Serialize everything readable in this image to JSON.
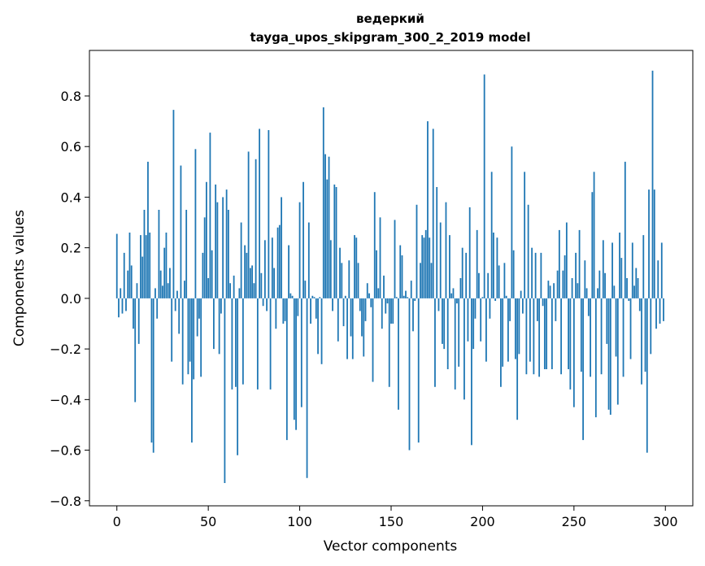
{
  "chart_data": {
    "type": "bar",
    "title_line1": "ведеркий",
    "title_line2": "tayga_upos_skipgram_300_2_2019 model",
    "xlabel": "Vector components",
    "ylabel": "Components values",
    "xlim": [
      -15,
      315
    ],
    "ylim": [
      -0.82,
      0.98
    ],
    "xticks": [
      0,
      50,
      100,
      150,
      200,
      250,
      300
    ],
    "xtick_labels": [
      "0",
      "50",
      "100",
      "150",
      "200",
      "250",
      "300"
    ],
    "yticks": [
      -0.8,
      -0.6,
      -0.4,
      -0.2,
      0.0,
      0.2,
      0.4,
      0.6,
      0.8
    ],
    "ytick_labels": [
      "−0.8",
      "−0.6",
      "−0.4",
      "−0.2",
      "0.0",
      "0.2",
      "0.4",
      "0.6",
      "0.8"
    ],
    "bar_color": "#1f77b4",
    "grid": false,
    "values": [
      0.255,
      -0.075,
      0.04,
      -0.06,
      0.18,
      -0.05,
      0.11,
      0.26,
      0.13,
      -0.12,
      -0.41,
      0.06,
      -0.18,
      0.25,
      0.165,
      0.35,
      0.25,
      0.54,
      0.26,
      -0.57,
      -0.61,
      0.04,
      -0.08,
      0.35,
      0.11,
      0.05,
      0.2,
      0.26,
      0.06,
      0.12,
      -0.25,
      0.745,
      -0.05,
      0.03,
      -0.14,
      0.525,
      -0.34,
      0.07,
      0.35,
      -0.3,
      -0.25,
      -0.57,
      -0.32,
      0.59,
      -0.15,
      -0.08,
      -0.31,
      0.18,
      0.32,
      0.46,
      0.08,
      0.655,
      0.19,
      -0.2,
      0.45,
      0.38,
      -0.22,
      -0.06,
      0.4,
      -0.73,
      0.43,
      0.35,
      0.06,
      -0.36,
      0.09,
      -0.35,
      -0.62,
      0.04,
      0.3,
      -0.34,
      0.21,
      0.18,
      0.58,
      0.12,
      0.13,
      0.06,
      0.55,
      -0.36,
      0.67,
      0.1,
      -0.03,
      0.23,
      -0.05,
      0.665,
      -0.36,
      0.24,
      0.12,
      -0.12,
      0.28,
      0.29,
      0.4,
      -0.1,
      -0.09,
      -0.56,
      0.21,
      0.02,
      0.01,
      -0.48,
      -0.52,
      -0.07,
      0.38,
      -0.43,
      0.46,
      0.07,
      -0.71,
      0.3,
      -0.1,
      0.01,
      0.005,
      -0.08,
      -0.22,
      0.005,
      -0.26,
      0.755,
      0.57,
      0.47,
      0.56,
      0.23,
      -0.05,
      0.45,
      0.44,
      -0.17,
      0.2,
      0.14,
      -0.11,
      0.01,
      -0.24,
      0.15,
      -0.15,
      -0.24,
      0.25,
      0.24,
      0.14,
      -0.05,
      -0.15,
      -0.23,
      -0.09,
      0.06,
      0.02,
      -0.035,
      -0.33,
      0.42,
      0.19,
      0.04,
      0.32,
      -0.12,
      0.09,
      -0.06,
      -0.02,
      -0.35,
      -0.1,
      -0.1,
      0.31,
      0.005,
      -0.44,
      0.21,
      0.17,
      0.01,
      0.03,
      0.005,
      -0.6,
      0.07,
      -0.13,
      -0.01,
      0.37,
      -0.57,
      0.14,
      0.25,
      0.24,
      0.27,
      0.7,
      0.24,
      0.14,
      0.67,
      -0.35,
      0.44,
      -0.05,
      0.3,
      -0.18,
      -0.2,
      0.38,
      -0.28,
      0.25,
      0.02,
      0.04,
      -0.36,
      -0.02,
      -0.27,
      0.08,
      0.2,
      -0.4,
      0.18,
      -0.17,
      0.36,
      -0.58,
      -0.2,
      -0.08,
      0.27,
      0.1,
      -0.17,
      0.005,
      0.885,
      -0.25,
      0.1,
      -0.08,
      0.5,
      0.26,
      -0.01,
      0.24,
      0.13,
      -0.35,
      -0.27,
      0.14,
      0.01,
      -0.25,
      -0.09,
      0.6,
      0.19,
      -0.24,
      -0.48,
      -0.22,
      0.03,
      -0.06,
      0.5,
      -0.3,
      0.37,
      -0.25,
      0.2,
      -0.3,
      0.18,
      -0.09,
      -0.31,
      0.18,
      -0.03,
      -0.28,
      -0.28,
      0.07,
      0.05,
      -0.28,
      0.06,
      -0.09,
      0.11,
      0.27,
      -0.3,
      0.11,
      0.17,
      0.3,
      -0.28,
      -0.36,
      0.08,
      -0.43,
      0.18,
      0.06,
      0.27,
      -0.29,
      -0.56,
      0.15,
      0.04,
      -0.07,
      -0.31,
      0.42,
      0.5,
      -0.47,
      0.04,
      0.11,
      -0.3,
      0.23,
      0.1,
      -0.18,
      -0.44,
      -0.46,
      0.22,
      0.05,
      -0.23,
      -0.42,
      0.26,
      0.16,
      -0.31,
      0.54,
      0.08,
      -0.01,
      -0.24,
      0.22,
      0.05,
      0.12,
      0.08,
      -0.05,
      -0.34,
      0.25,
      -0.29,
      -0.61,
      0.43,
      -0.22,
      0.9,
      0.43,
      -0.12,
      0.15,
      -0.1,
      0.22,
      -0.09
    ]
  }
}
